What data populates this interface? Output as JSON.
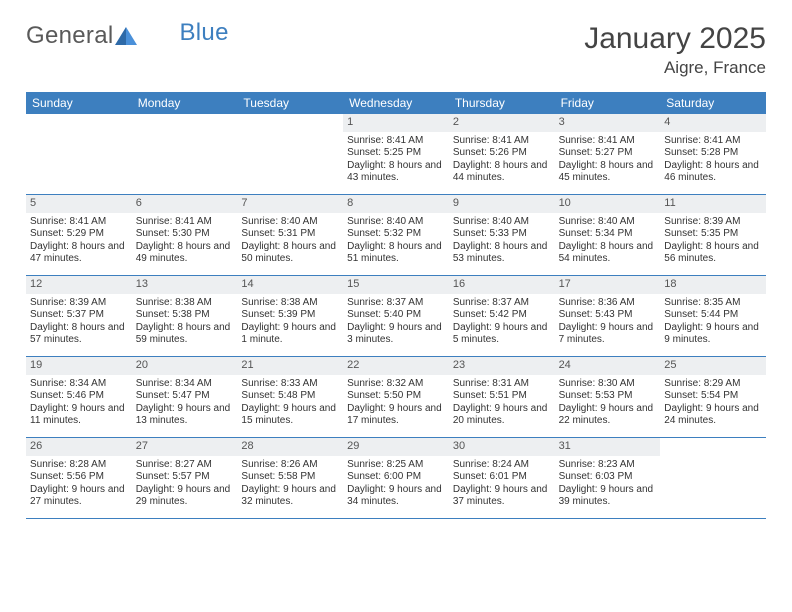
{
  "logo": {
    "text_general": "General",
    "text_blue": "Blue"
  },
  "title": "January 2025",
  "location": "Aigre, France",
  "colors": {
    "header_bar": "#3d7fbf",
    "header_text": "#ffffff",
    "daynum_bg": "#edeff1",
    "daynum_text": "#555555",
    "body_text": "#333333",
    "rule": "#3d7fbf",
    "logo_gray": "#595959",
    "logo_blue": "#3d7fbf",
    "background": "#ffffff"
  },
  "typography": {
    "title_fontsize": 30,
    "location_fontsize": 17,
    "weekday_fontsize": 12,
    "daynum_fontsize": 11,
    "body_fontsize": 10,
    "logo_fontsize": 24
  },
  "weekdays": [
    "Sunday",
    "Monday",
    "Tuesday",
    "Wednesday",
    "Thursday",
    "Friday",
    "Saturday"
  ],
  "first_weekday_index": 3,
  "days": [
    {
      "n": 1,
      "sunrise": "8:41 AM",
      "sunset": "5:25 PM",
      "daylight": "8 hours and 43 minutes."
    },
    {
      "n": 2,
      "sunrise": "8:41 AM",
      "sunset": "5:26 PM",
      "daylight": "8 hours and 44 minutes."
    },
    {
      "n": 3,
      "sunrise": "8:41 AM",
      "sunset": "5:27 PM",
      "daylight": "8 hours and 45 minutes."
    },
    {
      "n": 4,
      "sunrise": "8:41 AM",
      "sunset": "5:28 PM",
      "daylight": "8 hours and 46 minutes."
    },
    {
      "n": 5,
      "sunrise": "8:41 AM",
      "sunset": "5:29 PM",
      "daylight": "8 hours and 47 minutes."
    },
    {
      "n": 6,
      "sunrise": "8:41 AM",
      "sunset": "5:30 PM",
      "daylight": "8 hours and 49 minutes."
    },
    {
      "n": 7,
      "sunrise": "8:40 AM",
      "sunset": "5:31 PM",
      "daylight": "8 hours and 50 minutes."
    },
    {
      "n": 8,
      "sunrise": "8:40 AM",
      "sunset": "5:32 PM",
      "daylight": "8 hours and 51 minutes."
    },
    {
      "n": 9,
      "sunrise": "8:40 AM",
      "sunset": "5:33 PM",
      "daylight": "8 hours and 53 minutes."
    },
    {
      "n": 10,
      "sunrise": "8:40 AM",
      "sunset": "5:34 PM",
      "daylight": "8 hours and 54 minutes."
    },
    {
      "n": 11,
      "sunrise": "8:39 AM",
      "sunset": "5:35 PM",
      "daylight": "8 hours and 56 minutes."
    },
    {
      "n": 12,
      "sunrise": "8:39 AM",
      "sunset": "5:37 PM",
      "daylight": "8 hours and 57 minutes."
    },
    {
      "n": 13,
      "sunrise": "8:38 AM",
      "sunset": "5:38 PM",
      "daylight": "8 hours and 59 minutes."
    },
    {
      "n": 14,
      "sunrise": "8:38 AM",
      "sunset": "5:39 PM",
      "daylight": "9 hours and 1 minute."
    },
    {
      "n": 15,
      "sunrise": "8:37 AM",
      "sunset": "5:40 PM",
      "daylight": "9 hours and 3 minutes."
    },
    {
      "n": 16,
      "sunrise": "8:37 AM",
      "sunset": "5:42 PM",
      "daylight": "9 hours and 5 minutes."
    },
    {
      "n": 17,
      "sunrise": "8:36 AM",
      "sunset": "5:43 PM",
      "daylight": "9 hours and 7 minutes."
    },
    {
      "n": 18,
      "sunrise": "8:35 AM",
      "sunset": "5:44 PM",
      "daylight": "9 hours and 9 minutes."
    },
    {
      "n": 19,
      "sunrise": "8:34 AM",
      "sunset": "5:46 PM",
      "daylight": "9 hours and 11 minutes."
    },
    {
      "n": 20,
      "sunrise": "8:34 AM",
      "sunset": "5:47 PM",
      "daylight": "9 hours and 13 minutes."
    },
    {
      "n": 21,
      "sunrise": "8:33 AM",
      "sunset": "5:48 PM",
      "daylight": "9 hours and 15 minutes."
    },
    {
      "n": 22,
      "sunrise": "8:32 AM",
      "sunset": "5:50 PM",
      "daylight": "9 hours and 17 minutes."
    },
    {
      "n": 23,
      "sunrise": "8:31 AM",
      "sunset": "5:51 PM",
      "daylight": "9 hours and 20 minutes."
    },
    {
      "n": 24,
      "sunrise": "8:30 AM",
      "sunset": "5:53 PM",
      "daylight": "9 hours and 22 minutes."
    },
    {
      "n": 25,
      "sunrise": "8:29 AM",
      "sunset": "5:54 PM",
      "daylight": "9 hours and 24 minutes."
    },
    {
      "n": 26,
      "sunrise": "8:28 AM",
      "sunset": "5:56 PM",
      "daylight": "9 hours and 27 minutes."
    },
    {
      "n": 27,
      "sunrise": "8:27 AM",
      "sunset": "5:57 PM",
      "daylight": "9 hours and 29 minutes."
    },
    {
      "n": 28,
      "sunrise": "8:26 AM",
      "sunset": "5:58 PM",
      "daylight": "9 hours and 32 minutes."
    },
    {
      "n": 29,
      "sunrise": "8:25 AM",
      "sunset": "6:00 PM",
      "daylight": "9 hours and 34 minutes."
    },
    {
      "n": 30,
      "sunrise": "8:24 AM",
      "sunset": "6:01 PM",
      "daylight": "9 hours and 37 minutes."
    },
    {
      "n": 31,
      "sunrise": "8:23 AM",
      "sunset": "6:03 PM",
      "daylight": "9 hours and 39 minutes."
    }
  ],
  "labels": {
    "sunrise": "Sunrise:",
    "sunset": "Sunset:",
    "daylight": "Daylight:"
  }
}
